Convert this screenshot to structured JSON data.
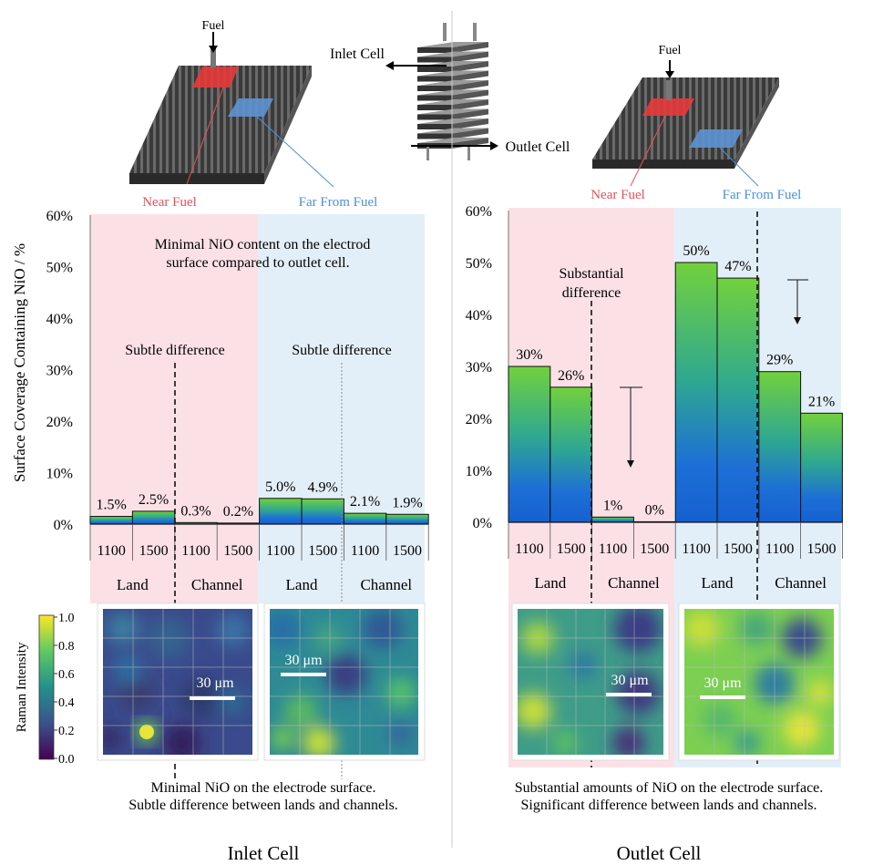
{
  "illustration": {
    "fuel_label": "Fuel",
    "inlet_cell_label": "Inlet Cell",
    "outlet_cell_label": "Outlet Cell",
    "near_fuel_label": "Near Fuel",
    "far_fuel_label": "Far From Fuel",
    "near_color": "#e8505b",
    "far_color": "#4a90d9"
  },
  "ylabel": "Surface Coverage Containing NiO / %",
  "colorbar": {
    "label": "Raman Intensity",
    "ticks": [
      "1.0",
      "0.8",
      "0.6",
      "0.4",
      "0.2",
      "0.0"
    ],
    "colormap": "viridis"
  },
  "scale_bar_label": "30 μm",
  "land_label": "Land",
  "channel_label": "Channel",
  "chart_data": [
    {
      "type": "bar",
      "panel": "Inlet Cell",
      "categories": [
        "1100",
        "1500",
        "1100",
        "1500",
        "1100",
        "1500",
        "1100",
        "1500"
      ],
      "groups": [
        "Land",
        "Channel",
        "Land",
        "Channel"
      ],
      "regions": [
        "Near Fuel",
        "Far From Fuel"
      ],
      "values": [
        1.5,
        2.5,
        0.3,
        0.2,
        5.0,
        4.9,
        2.1,
        1.9
      ],
      "value_labels": [
        "1.5%",
        "2.5%",
        "0.3%",
        "0.2%",
        "5.0%",
        "4.9%",
        "2.1%",
        "1.9%"
      ],
      "yticks": [
        "0%",
        "10%",
        "20%",
        "30%",
        "40%",
        "50%",
        "60%"
      ],
      "ylim": [
        0,
        60
      ],
      "annotations": [
        "Minimal NiO content on the electrode surface compared to outlet cell.",
        "Subtle difference",
        "Subtle difference"
      ],
      "caption": [
        "Minimal NiO on the electrode surface.",
        "Subtle difference between lands and channels."
      ],
      "title": "Inlet Cell"
    },
    {
      "type": "bar",
      "panel": "Outlet Cell",
      "categories": [
        "1100",
        "1500",
        "1100",
        "1500",
        "1100",
        "1500",
        "1100",
        "1500"
      ],
      "groups": [
        "Land",
        "Channel",
        "Land",
        "Channel"
      ],
      "regions": [
        "Near Fuel",
        "Far From Fuel"
      ],
      "values": [
        30,
        26,
        1,
        0,
        50,
        47,
        29,
        21
      ],
      "value_labels": [
        "30%",
        "26%",
        "1%",
        "0%",
        "50%",
        "47%",
        "29%",
        "21%"
      ],
      "yticks": [
        "0%",
        "10%",
        "20%",
        "30%",
        "40%",
        "50%",
        "60%"
      ],
      "ylim": [
        0,
        60
      ],
      "annotations": [
        "Substantial difference"
      ],
      "caption": [
        "Substantial amounts of  NiO on the electrode surface.",
        "Significant difference between lands and channels."
      ],
      "title": "Outlet Cell"
    }
  ]
}
